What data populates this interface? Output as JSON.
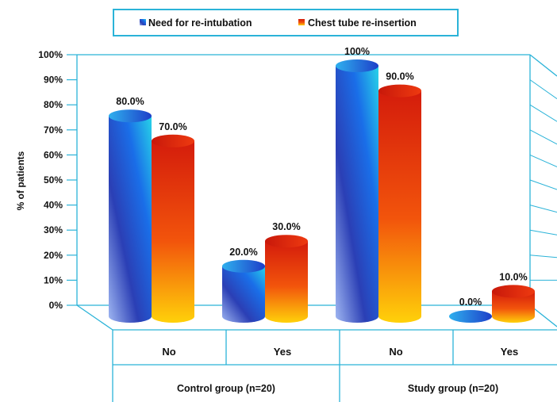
{
  "chart_data": {
    "type": "bar",
    "ylabel": "% of patients",
    "ylim": [
      0,
      100
    ],
    "yticks": [
      "0%",
      "10%",
      "20%",
      "30%",
      "40%",
      "50%",
      "60%",
      "70%",
      "80%",
      "90%",
      "100%"
    ],
    "groups": [
      {
        "label": "Control group (n=20)",
        "categories": [
          "No",
          "Yes"
        ]
      },
      {
        "label": "Study group (n=20)",
        "categories": [
          "No",
          "Yes"
        ]
      }
    ],
    "categories": [
      "No",
      "Yes",
      "No",
      "Yes"
    ],
    "series": [
      {
        "name": "Need for re-intubation",
        "values": [
          80,
          20,
          100,
          0
        ],
        "labels": [
          "80.0%",
          "20.0%",
          "100%",
          "0.0%"
        ],
        "color": "#1f5fd6"
      },
      {
        "name": "Chest tube re-insertion",
        "values": [
          70,
          30,
          90,
          10
        ],
        "labels": [
          "70.0%",
          "30.0%",
          "90.0%",
          "10.0%"
        ],
        "color": "#e23a10"
      }
    ],
    "legend_position": "top",
    "grid": false
  }
}
